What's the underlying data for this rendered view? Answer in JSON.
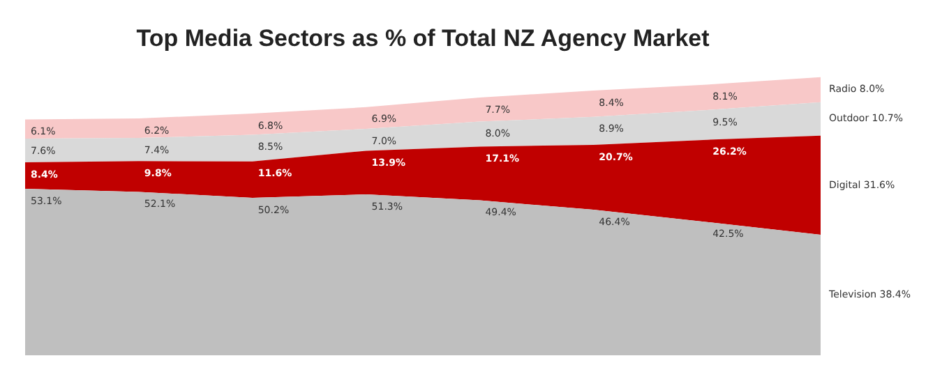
{
  "chart_data": {
    "type": "area",
    "stacked": true,
    "title": "Top Media Sectors as % of Total NZ Agency Market",
    "categories": [
      null,
      null,
      null,
      null,
      null,
      null,
      null,
      null
    ],
    "tick_labels": false,
    "legend": false,
    "series": [
      {
        "name": "Television",
        "color": "#bfbfbf",
        "values": [
          53.1,
          52.1,
          50.2,
          51.3,
          49.4,
          46.4,
          42.5,
          38.4
        ],
        "value_labels": [
          "53.1%",
          "52.1%",
          "50.2%",
          "51.3%",
          "49.4%",
          "46.4%",
          "42.5%",
          "38.4%"
        ]
      },
      {
        "name": "Digital",
        "color": "#c00000",
        "values": [
          8.4,
          9.8,
          11.6,
          13.9,
          17.1,
          20.7,
          26.2,
          31.6
        ],
        "value_labels": [
          "8.4%",
          "9.8%",
          "11.6%",
          "13.9%",
          "17.1%",
          "20.7%",
          "26.2%",
          "31.6%"
        ]
      },
      {
        "name": "Outdoor",
        "color": "#d9d9d9",
        "values": [
          7.6,
          7.4,
          8.5,
          7.0,
          8.0,
          8.9,
          9.5,
          10.7
        ],
        "value_labels": [
          "7.6%",
          "7.4%",
          "8.5%",
          "7.0%",
          "8.0%",
          "8.9%",
          "9.5%",
          "10.7%"
        ]
      },
      {
        "name": "Radio",
        "color": "#f8c8c8",
        "values": [
          6.1,
          6.2,
          6.8,
          6.9,
          7.7,
          8.4,
          8.1,
          8.0
        ],
        "value_labels": [
          "6.1%",
          "6.2%",
          "6.8%",
          "6.9%",
          "7.7%",
          "8.4%",
          "8.1%",
          "8.0%"
        ]
      }
    ]
  }
}
